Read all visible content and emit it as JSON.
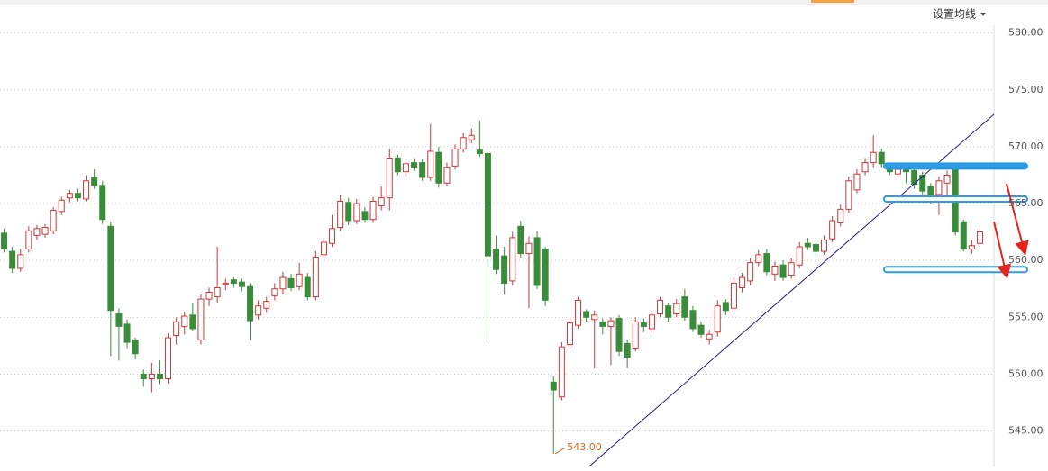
{
  "chart_data": {
    "type": "candlestick",
    "menu_label": "设置均线",
    "ylim": [
      541.8,
      582.9
    ],
    "yticks": [
      {
        "value": 545,
        "label": "545.00"
      },
      {
        "value": 550,
        "label": "550.00"
      },
      {
        "value": 555,
        "label": "555.00"
      },
      {
        "value": 560,
        "label": "560.00"
      },
      {
        "value": 565,
        "label": "565.00"
      },
      {
        "value": 570,
        "label": "570.00"
      },
      {
        "value": 575,
        "label": "575.00"
      },
      {
        "value": 580,
        "label": "580.00"
      }
    ],
    "grid": true,
    "up_color": "#c9393b",
    "down_color": "#3a8c3a",
    "level_color": "#2e9be6",
    "levels": [
      568.3,
      565.4,
      559.2
    ],
    "low_annotation": {
      "value": 543,
      "label": "543.00"
    },
    "ohlc": [
      [
        562.4,
        562.8,
        560.7,
        561.0
      ],
      [
        560.8,
        561.2,
        558.9,
        559.3
      ],
      [
        559.3,
        561.0,
        559.0,
        560.5
      ],
      [
        561.0,
        563.0,
        560.7,
        562.6
      ],
      [
        562.2,
        563.1,
        561.8,
        562.8
      ],
      [
        562.3,
        563.2,
        562.0,
        562.9
      ],
      [
        562.6,
        564.7,
        562.3,
        564.4
      ],
      [
        564.3,
        565.6,
        564.0,
        565.3
      ],
      [
        565.5,
        566.2,
        565.1,
        565.9
      ],
      [
        565.9,
        566.3,
        565.2,
        565.5
      ],
      [
        565.4,
        567.5,
        565.2,
        567.0
      ],
      [
        567.3,
        568.0,
        566.3,
        566.6
      ],
      [
        566.6,
        567.0,
        563.2,
        563.6
      ],
      [
        563.0,
        563.4,
        551.6,
        555.6
      ],
      [
        555.3,
        555.8,
        551.2,
        554.2
      ],
      [
        554.4,
        554.8,
        552.3,
        552.8
      ],
      [
        553.0,
        553.2,
        551.3,
        551.8
      ],
      [
        550.0,
        550.4,
        548.9,
        549.6
      ],
      [
        549.6,
        551.0,
        548.4,
        550.0
      ],
      [
        550.0,
        551.2,
        549.1,
        549.6
      ],
      [
        549.6,
        553.6,
        549.2,
        553.2
      ],
      [
        553.4,
        555.0,
        552.6,
        554.6
      ],
      [
        554.2,
        555.5,
        553.5,
        555.1
      ],
      [
        555.2,
        556.3,
        553.8,
        554.0
      ],
      [
        553.0,
        557.0,
        552.6,
        556.6
      ],
      [
        556.6,
        557.6,
        556.0,
        557.2
      ],
      [
        556.8,
        561.2,
        556.3,
        557.6
      ],
      [
        557.9,
        558.4,
        557.4,
        558.0
      ],
      [
        558.3,
        558.5,
        557.6,
        558.0
      ],
      [
        558.1,
        558.4,
        557.3,
        557.7
      ],
      [
        557.7,
        558.0,
        553.0,
        554.7
      ],
      [
        555.2,
        556.5,
        554.8,
        556.0
      ],
      [
        555.8,
        556.8,
        555.4,
        556.4
      ],
      [
        556.9,
        558.0,
        556.5,
        557.5
      ],
      [
        557.5,
        559.0,
        557.0,
        558.5
      ],
      [
        558.4,
        558.8,
        557.3,
        557.6
      ],
      [
        557.7,
        559.8,
        557.4,
        558.8
      ],
      [
        558.5,
        558.9,
        556.5,
        556.8
      ],
      [
        556.8,
        560.8,
        556.5,
        560.3
      ],
      [
        560.5,
        562.0,
        560.2,
        561.6
      ],
      [
        561.5,
        564.0,
        561.2,
        562.8
      ],
      [
        562.9,
        565.8,
        562.6,
        565.2
      ],
      [
        565.1,
        565.5,
        563.1,
        563.5
      ],
      [
        563.5,
        565.4,
        563.2,
        565.0
      ],
      [
        564.3,
        564.7,
        563.3,
        563.6
      ],
      [
        563.6,
        565.6,
        563.3,
        565.2
      ],
      [
        564.8,
        566.5,
        564.4,
        565.5
      ],
      [
        565.5,
        569.8,
        564.4,
        569.0
      ],
      [
        569.0,
        569.3,
        567.5,
        567.8
      ],
      [
        567.8,
        568.9,
        567.4,
        568.5
      ],
      [
        568.6,
        569.0,
        567.9,
        568.2
      ],
      [
        568.6,
        568.9,
        567.0,
        567.3
      ],
      [
        567.3,
        572.0,
        567.0,
        569.6
      ],
      [
        569.5,
        570.0,
        566.4,
        566.8
      ],
      [
        566.8,
        568.6,
        566.5,
        568.2
      ],
      [
        568.3,
        570.2,
        568.0,
        569.8
      ],
      [
        569.8,
        571.2,
        569.5,
        570.8
      ],
      [
        570.6,
        571.6,
        570.3,
        571.0
      ],
      [
        569.7,
        572.3,
        569.1,
        569.4
      ],
      [
        569.4,
        569.6,
        553.0,
        560.4
      ],
      [
        561.0,
        562.2,
        558.8,
        559.2
      ],
      [
        560.4,
        561.2,
        557.0,
        558.0
      ],
      [
        558.2,
        562.5,
        557.8,
        562.0
      ],
      [
        563.0,
        563.5,
        560.2,
        560.6
      ],
      [
        560.6,
        562.1,
        555.8,
        561.5
      ],
      [
        562.0,
        562.6,
        557.5,
        557.8
      ],
      [
        561.0,
        561.2,
        556.0,
        556.5
      ],
      [
        549.3,
        549.8,
        543.0,
        548.6
      ],
      [
        548.0,
        552.8,
        547.7,
        552.4
      ],
      [
        552.6,
        555.0,
        552.2,
        554.5
      ],
      [
        554.3,
        556.8,
        554.0,
        556.5
      ],
      [
        555.5,
        555.7,
        554.6,
        555.0
      ],
      [
        554.8,
        555.6,
        550.5,
        555.2
      ],
      [
        554.6,
        554.9,
        553.5,
        554.2
      ],
      [
        554.2,
        555.0,
        550.8,
        554.7
      ],
      [
        554.9,
        555.2,
        551.6,
        552.0
      ],
      [
        552.7,
        553.0,
        550.5,
        551.5
      ],
      [
        552.3,
        555.0,
        552.0,
        554.6
      ],
      [
        554.5,
        554.9,
        553.7,
        554.2
      ],
      [
        554.0,
        555.6,
        553.6,
        555.2
      ],
      [
        555.3,
        556.8,
        555.0,
        556.5
      ],
      [
        556.0,
        556.3,
        554.6,
        555.0
      ],
      [
        555.3,
        556.6,
        555.0,
        556.2
      ],
      [
        556.8,
        557.5,
        554.7,
        555.0
      ],
      [
        555.6,
        556.0,
        553.7,
        554.0
      ],
      [
        554.3,
        554.6,
        553.2,
        553.5
      ],
      [
        553.1,
        553.9,
        552.6,
        553.5
      ],
      [
        553.7,
        556.5,
        553.3,
        556.0
      ],
      [
        556.3,
        556.6,
        555.2,
        555.6
      ],
      [
        555.8,
        558.5,
        555.5,
        558.0
      ],
      [
        557.6,
        558.9,
        557.2,
        558.5
      ],
      [
        558.2,
        560.2,
        557.8,
        559.8
      ],
      [
        559.8,
        560.9,
        559.5,
        560.5
      ],
      [
        560.6,
        561.0,
        558.7,
        559.0
      ],
      [
        558.8,
        559.9,
        558.2,
        559.5
      ],
      [
        559.6,
        560.0,
        558.2,
        558.5
      ],
      [
        558.7,
        560.2,
        558.4,
        559.8
      ],
      [
        559.6,
        561.6,
        559.3,
        561.2
      ],
      [
        561.5,
        562.0,
        560.9,
        561.2
      ],
      [
        561.4,
        561.8,
        560.5,
        560.8
      ],
      [
        560.8,
        562.2,
        560.5,
        561.8
      ],
      [
        561.9,
        563.9,
        561.6,
        563.5
      ],
      [
        563.3,
        564.9,
        563.0,
        564.5
      ],
      [
        564.5,
        567.4,
        564.2,
        567.0
      ],
      [
        566.2,
        568.0,
        565.9,
        567.6
      ],
      [
        567.8,
        569.0,
        567.5,
        568.6
      ],
      [
        568.6,
        571.0,
        568.2,
        569.5
      ],
      [
        569.5,
        569.8,
        568.2,
        568.5
      ],
      [
        568.2,
        568.5,
        567.5,
        567.8
      ],
      [
        567.6,
        568.4,
        567.3,
        568.0
      ],
      [
        568.2,
        568.5,
        566.8,
        567.8
      ],
      [
        567.9,
        568.3,
        566.3,
        566.7
      ],
      [
        567.5,
        567.8,
        565.8,
        566.1
      ],
      [
        566.5,
        566.8,
        565.0,
        565.3
      ],
      [
        565.8,
        567.4,
        564.0,
        567.0
      ],
      [
        566.8,
        567.9,
        565.8,
        567.5
      ],
      [
        568.2,
        568.4,
        562.2,
        562.5
      ],
      [
        563.4,
        563.6,
        560.8,
        561.0
      ],
      [
        561.0,
        561.8,
        560.6,
        561.3
      ],
      [
        561.5,
        562.8,
        561.2,
        562.5
      ]
    ]
  }
}
